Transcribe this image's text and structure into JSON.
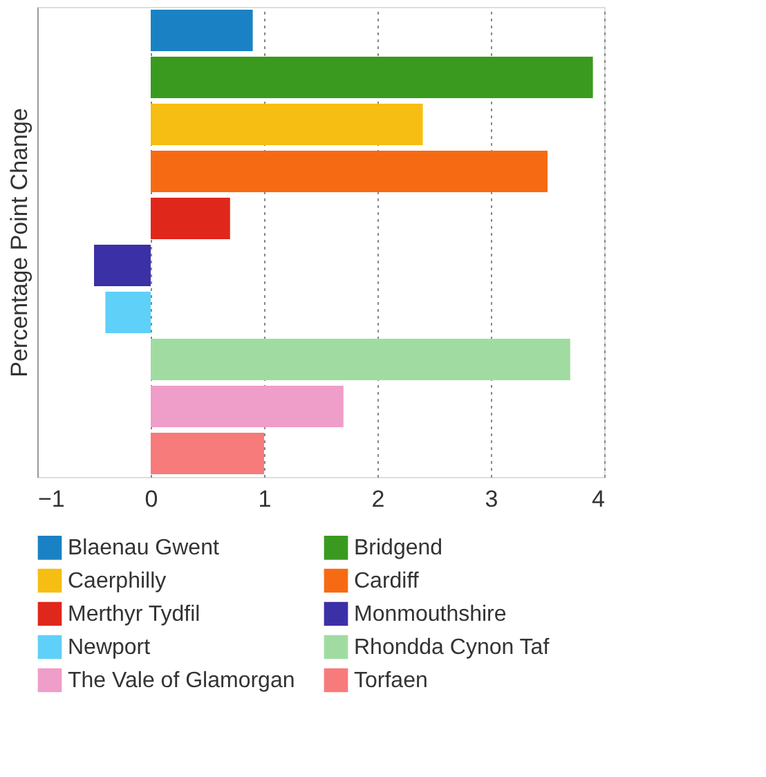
{
  "chart_data": {
    "type": "bar",
    "orientation": "horizontal",
    "ylabel": "Percentage Point Change",
    "categories": [
      null,
      null,
      null,
      null,
      null,
      null,
      null,
      null,
      null,
      null
    ],
    "series": [
      {
        "name": "Blaenau Gwent",
        "color": "#1a82c4",
        "values": [
          0.9,
          null,
          null,
          null,
          null,
          null,
          null,
          null,
          null,
          null
        ]
      },
      {
        "name": "Bridgend",
        "color": "#3a9a1f",
        "values": [
          null,
          3.9,
          null,
          null,
          null,
          null,
          null,
          null,
          null,
          null
        ]
      },
      {
        "name": "Caerphilly",
        "color": "#f6be12",
        "values": [
          null,
          null,
          2.4,
          null,
          null,
          null,
          null,
          null,
          null,
          null
        ]
      },
      {
        "name": "Cardiff",
        "color": "#f76a14",
        "values": [
          null,
          null,
          null,
          3.5,
          null,
          null,
          null,
          null,
          null,
          null
        ]
      },
      {
        "name": "Merthyr Tydfil",
        "color": "#e0271b",
        "values": [
          null,
          null,
          null,
          null,
          0.7,
          null,
          null,
          null,
          null,
          null
        ]
      },
      {
        "name": "Monmouthshire",
        "color": "#3b30a6",
        "values": [
          null,
          null,
          null,
          null,
          null,
          -0.5,
          null,
          null,
          null,
          null
        ]
      },
      {
        "name": "Newport",
        "color": "#5fd0f8",
        "values": [
          null,
          null,
          null,
          null,
          null,
          null,
          -0.4,
          null,
          null,
          null
        ]
      },
      {
        "name": "Rhondda Cynon Taf",
        "color": "#a0dca2",
        "values": [
          null,
          null,
          null,
          null,
          null,
          null,
          null,
          3.7,
          null,
          null
        ]
      },
      {
        "name": "The Vale of Glamorgan",
        "color": "#ef9dc9",
        "values": [
          null,
          null,
          null,
          null,
          null,
          null,
          null,
          null,
          1.7,
          null
        ]
      },
      {
        "name": "Torfaen",
        "color": "#f77b7b",
        "values": [
          null,
          null,
          null,
          null,
          null,
          null,
          null,
          null,
          null,
          1.0
        ]
      }
    ],
    "xlim": [
      -1,
      4
    ],
    "xticks": [
      -1,
      0,
      1,
      2,
      3,
      4
    ],
    "grid": "x",
    "legend": "bottom",
    "tick_labels": "x"
  }
}
